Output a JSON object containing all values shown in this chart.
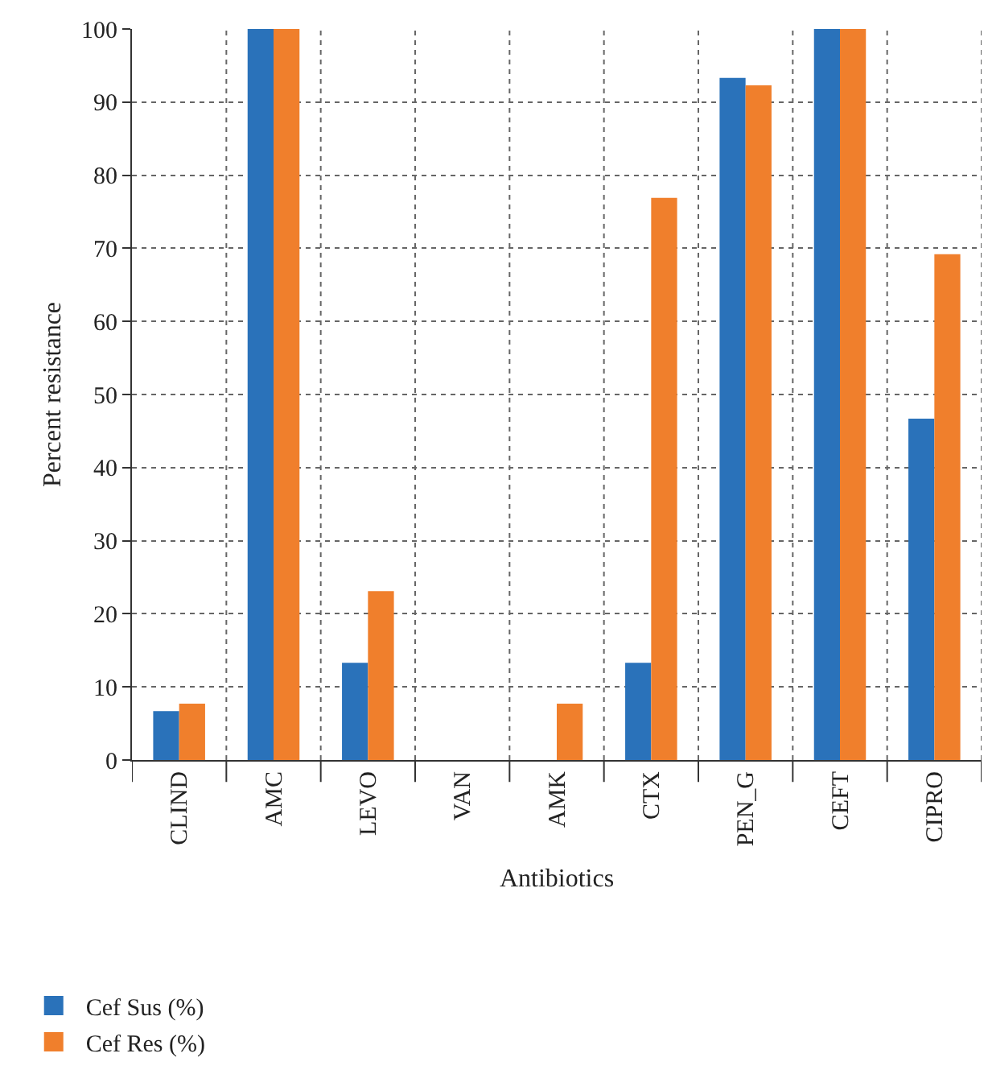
{
  "chart_data": {
    "type": "bar",
    "xlabel": "Antibiotics",
    "ylabel": "Percent resistance",
    "categories": [
      "CLIND",
      "AMC",
      "LEVO",
      "VAN",
      "AMK",
      "CTX",
      "PEN_G",
      "CEFT",
      "CIPRO"
    ],
    "series": [
      {
        "name": "Cef Sus (%)",
        "color": "#2a72ba",
        "values": [
          6.7,
          100,
          13.3,
          0,
          0,
          13.3,
          93.3,
          100,
          46.7
        ]
      },
      {
        "name": "Cef Res (%)",
        "color": "#f07f2c",
        "values": [
          7.7,
          100,
          23.1,
          0,
          7.7,
          76.9,
          92.3,
          100,
          69.2
        ]
      }
    ],
    "ylim": [
      0,
      100
    ],
    "yticks": [
      0,
      10,
      20,
      30,
      40,
      50,
      60,
      70,
      80,
      90,
      100
    ],
    "grid": true,
    "legend": "bottom left"
  }
}
